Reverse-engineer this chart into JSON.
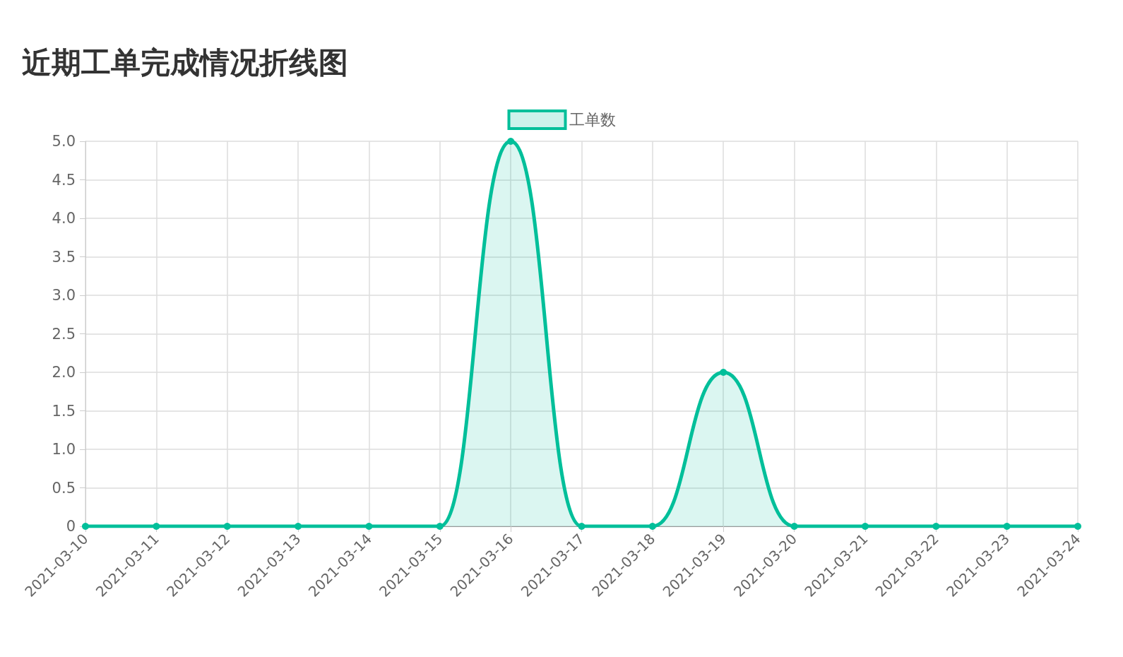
{
  "chart_data": {
    "type": "area",
    "title": "近期工单完成情况折线图",
    "categories": [
      "2021-03-10",
      "2021-03-11",
      "2021-03-12",
      "2021-03-13",
      "2021-03-14",
      "2021-03-15",
      "2021-03-16",
      "2021-03-17",
      "2021-03-18",
      "2021-03-19",
      "2021-03-20",
      "2021-03-21",
      "2021-03-22",
      "2021-03-23",
      "2021-03-24"
    ],
    "series": [
      {
        "name": "工单数",
        "color": "#00bf9a",
        "values": [
          0,
          0,
          0,
          0,
          0,
          0,
          5,
          0,
          0,
          2,
          0,
          0,
          0,
          0,
          0
        ]
      }
    ],
    "ylim": [
      0,
      5
    ],
    "yticks": [
      0,
      0.5,
      {
        "value": 1,
        "label": "1.0"
      },
      1.5,
      {
        "value": 2,
        "label": "2.0"
      },
      2.5,
      {
        "value": 3,
        "label": "3.0"
      },
      3.5,
      {
        "value": 4,
        "label": "4.0"
      },
      4.5,
      {
        "value": 5,
        "label": "5.0"
      }
    ],
    "grid": true,
    "legend": "top",
    "marker": "circle",
    "line_style": "solid"
  }
}
